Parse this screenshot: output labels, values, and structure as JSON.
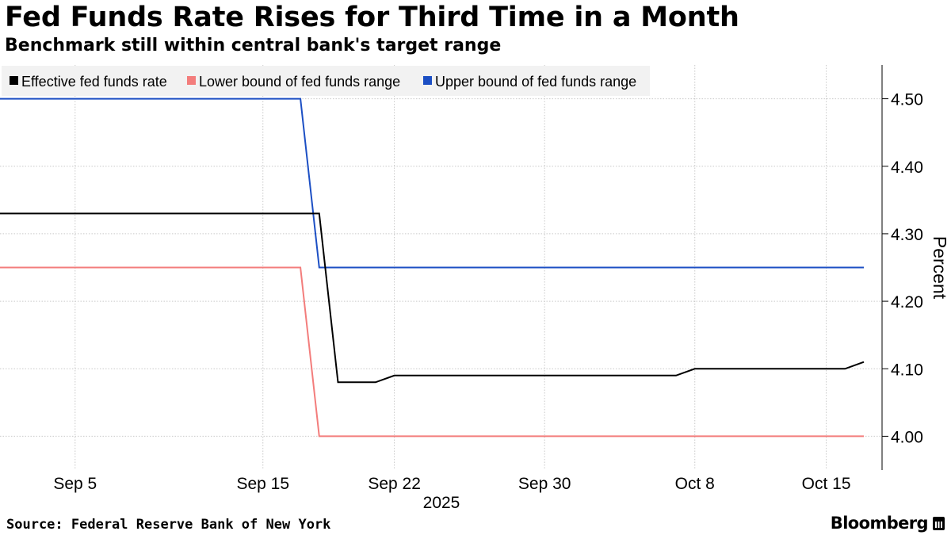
{
  "title": "Fed Funds Rate Rises for Third Time in a Month",
  "subtitle": "Benchmark still within central bank's target range",
  "source": "Source: Federal Reserve Bank of New York",
  "brand": "Bloomberg",
  "brand_icon": "bloomberg-logo-icon",
  "chart_data": {
    "type": "line",
    "title": "Fed Funds Rate Rises for Third Time in a Month",
    "subtitle": "Benchmark still within central bank's target range",
    "ylabel": "Percent",
    "xlabel": "2025",
    "ylim": [
      3.95,
      4.55
    ],
    "xlim": [
      "2025-09-01",
      "2025-10-17"
    ],
    "y_ticks": [
      4.0,
      4.1,
      4.2,
      4.3,
      4.4,
      4.5
    ],
    "y_tick_labels": [
      "4.00",
      "4.10",
      "4.20",
      "4.30",
      "4.40",
      "4.50"
    ],
    "x_ticks": [
      "2025-09-05",
      "2025-09-15",
      "2025-09-22",
      "2025-09-30",
      "2025-10-08",
      "2025-10-15"
    ],
    "x_tick_labels": [
      "Sep 5",
      "Sep 15",
      "Sep 22",
      "Sep 30",
      "Oct 8",
      "Oct 15"
    ],
    "y_axis_position": "right",
    "grid": true,
    "legend": "top-left",
    "series": [
      {
        "name": "Effective fed funds rate",
        "color": "#000000",
        "points": [
          [
            "2025-09-01",
            4.33
          ],
          [
            "2025-09-18",
            4.33
          ],
          [
            "2025-09-19",
            4.08
          ],
          [
            "2025-09-20",
            4.08
          ],
          [
            "2025-09-21",
            4.08
          ],
          [
            "2025-09-22",
            4.09
          ],
          [
            "2025-10-07",
            4.09
          ],
          [
            "2025-10-08",
            4.1
          ],
          [
            "2025-10-16",
            4.1
          ],
          [
            "2025-10-17",
            4.11
          ]
        ]
      },
      {
        "name": "Lower bound of fed funds range",
        "color": "#f37d7c",
        "points": [
          [
            "2025-09-01",
            4.25
          ],
          [
            "2025-09-17",
            4.25
          ],
          [
            "2025-09-18",
            4.0
          ],
          [
            "2025-10-17",
            4.0
          ]
        ]
      },
      {
        "name": "Upper bound of fed funds range",
        "color": "#1c4fc4",
        "points": [
          [
            "2025-09-01",
            4.5
          ],
          [
            "2025-09-17",
            4.5
          ],
          [
            "2025-09-18",
            4.25
          ],
          [
            "2025-10-17",
            4.25
          ]
        ]
      }
    ]
  }
}
